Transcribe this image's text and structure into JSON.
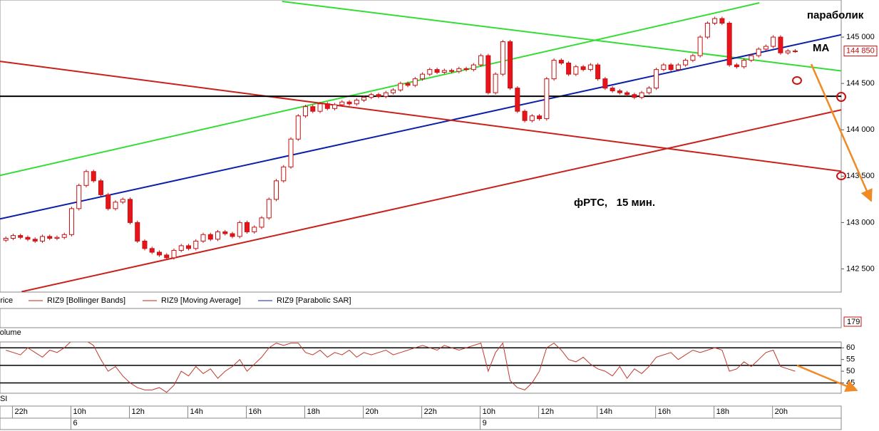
{
  "chart_data": {
    "type": "candlestick",
    "annotations": [
      "параболик",
      "MA",
      "фРТС,   15 мин."
    ],
    "legend": [
      "Price",
      "RIZ9 [Bollinger Bands]",
      "RIZ9 [Moving Average]",
      "RIZ9 [Parabolic SAR]"
    ],
    "xlim": [
      -0.8,
      114.3
    ],
    "xticks": [
      {
        "value": 1,
        "label": "22h"
      },
      {
        "value": 9,
        "label": "10h"
      },
      {
        "value": 17,
        "label": "12h"
      },
      {
        "value": 25,
        "label": "14h"
      },
      {
        "value": 33,
        "label": "16h"
      },
      {
        "value": 41,
        "label": "18h"
      },
      {
        "value": 49,
        "label": "20h"
      },
      {
        "value": 57,
        "label": "22h"
      },
      {
        "value": 65,
        "label": "10h"
      },
      {
        "value": 73,
        "label": "12h"
      },
      {
        "value": 81,
        "label": "14h"
      },
      {
        "value": 89,
        "label": "16h"
      },
      {
        "value": 97,
        "label": "18h"
      },
      {
        "value": 105,
        "label": "20h"
      }
    ],
    "dates": [
      {
        "value": 9,
        "label": "6"
      },
      {
        "value": 65,
        "label": "9"
      }
    ],
    "ylim": [
      142250,
      145400
    ],
    "yticks": [
      {
        "value": 142500,
        "label": "142 500"
      },
      {
        "value": 143000,
        "label": "143 000"
      },
      {
        "value": 143500,
        "label": "143 500"
      },
      {
        "value": 144000,
        "label": "144 000"
      },
      {
        "value": 144500,
        "label": "144 500"
      },
      {
        "value": 145000,
        "label": "145 000"
      }
    ],
    "last_price": {
      "value": 144850,
      "label": "144 850"
    },
    "up_color": "#ffffff",
    "down_color": "#e8141b",
    "outline_color": "#c81010",
    "open": [
      142810,
      142830,
      142860,
      142840,
      142820,
      142800,
      142850,
      142830,
      142840,
      142870,
      143150,
      143400,
      143550,
      143450,
      143300,
      143150,
      143220,
      143250,
      143000,
      142800,
      142720,
      142680,
      142650,
      142620,
      142700,
      142750,
      142720,
      142800,
      142870,
      142820,
      142900,
      142880,
      142850,
      143000,
      142900,
      142950,
      143050,
      143250,
      143450,
      143600,
      143900,
      144150,
      144250,
      144200,
      144280,
      144230,
      144270,
      144300,
      144280,
      144320,
      144350,
      144380,
      144360,
      144400,
      144430,
      144500,
      144480,
      144550,
      144600,
      144650,
      144620,
      144640,
      144630,
      144660,
      144650,
      144700,
      144800,
      144400,
      144600,
      144950,
      144450,
      144200,
      144100,
      144150,
      144120,
      144550,
      144750,
      144720,
      144600,
      144680,
      144650,
      144700,
      144550,
      144450,
      144420,
      144400,
      144380,
      144350,
      144400,
      144450,
      144650,
      144700,
      144650,
      144700,
      144750,
      144800,
      145000,
      145150,
      145200,
      145150,
      144700,
      144680,
      144750,
      144800,
      144870,
      144900,
      145000,
      144830,
      144850
    ],
    "high": [
      142850,
      142880,
      142880,
      142860,
      142840,
      142870,
      142870,
      142860,
      142890,
      143170,
      143420,
      143570,
      143570,
      143470,
      143320,
      143240,
      143270,
      143270,
      143020,
      142820,
      142740,
      142700,
      142670,
      142720,
      142770,
      142770,
      142820,
      142890,
      142890,
      142920,
      142920,
      142900,
      143020,
      143020,
      142970,
      143070,
      143270,
      143470,
      143620,
      143920,
      144170,
      144270,
      144270,
      144300,
      144300,
      144290,
      144320,
      144320,
      144340,
      144370,
      144400,
      144400,
      144420,
      144450,
      144520,
      144520,
      144570,
      144620,
      144670,
      144670,
      144660,
      144660,
      144680,
      144680,
      144720,
      144820,
      144820,
      144620,
      144970,
      144970,
      144470,
      144220,
      144170,
      144170,
      144570,
      144770,
      144770,
      144740,
      144700,
      144700,
      144720,
      144720,
      144570,
      144470,
      144440,
      144420,
      144400,
      144420,
      144470,
      144670,
      144720,
      144720,
      144720,
      144770,
      144820,
      145020,
      145170,
      145220,
      145220,
      145170,
      144720,
      144770,
      144820,
      144890,
      144920,
      145020,
      145020,
      144870,
      144870
    ],
    "low": [
      142790,
      142810,
      142820,
      142800,
      142780,
      142780,
      142810,
      142810,
      142820,
      142850,
      143130,
      143380,
      143430,
      143280,
      143130,
      143130,
      143200,
      142980,
      142780,
      142700,
      142660,
      142630,
      142600,
      142600,
      142680,
      142700,
      142700,
      142780,
      142800,
      142800,
      142860,
      142830,
      142830,
      142880,
      142880,
      142930,
      143030,
      143230,
      143430,
      143580,
      143880,
      144130,
      144180,
      144180,
      144210,
      144210,
      144250,
      144260,
      144260,
      144300,
      144330,
      144340,
      144340,
      144380,
      144410,
      144460,
      144460,
      144530,
      144580,
      144600,
      144600,
      144610,
      144610,
      144630,
      144630,
      144680,
      144380,
      144380,
      144580,
      144430,
      144180,
      144080,
      144080,
      144100,
      144100,
      144530,
      144700,
      144580,
      144580,
      144630,
      144630,
      144530,
      144430,
      144400,
      144380,
      144360,
      144330,
      144330,
      144380,
      144430,
      144630,
      144630,
      144630,
      144680,
      144730,
      144780,
      144980,
      145130,
      145130,
      144680,
      144660,
      144660,
      144730,
      144780,
      144850,
      144880,
      144810,
      144810,
      144830
    ],
    "close": [
      142830,
      142860,
      142840,
      142820,
      142800,
      142850,
      142830,
      142840,
      142870,
      143150,
      143400,
      143550,
      143450,
      143300,
      143150,
      143220,
      143250,
      143000,
      142800,
      142720,
      142680,
      142650,
      142620,
      142700,
      142750,
      142720,
      142800,
      142870,
      142820,
      142900,
      142880,
      142850,
      143000,
      142900,
      142950,
      143050,
      143250,
      143450,
      143600,
      143900,
      144150,
      144250,
      144200,
      144280,
      144230,
      144270,
      144300,
      144280,
      144320,
      144350,
      144380,
      144360,
      144400,
      144430,
      144500,
      144480,
      144550,
      144600,
      144650,
      144620,
      144640,
      144630,
      144660,
      144650,
      144700,
      144800,
      144400,
      144600,
      144950,
      144450,
      144200,
      144100,
      144150,
      144120,
      144550,
      144750,
      144720,
      144600,
      144680,
      144650,
      144700,
      144550,
      144450,
      144420,
      144400,
      144380,
      144350,
      144400,
      144450,
      144650,
      144700,
      144650,
      144700,
      144750,
      144800,
      145000,
      145150,
      145200,
      145150,
      144700,
      144680,
      144750,
      144800,
      144870,
      144900,
      145000,
      144830,
      144850,
      144850
    ],
    "trendlines": [
      {
        "color": "#33dd33",
        "points": [
          [
            -0.8,
            143508
          ],
          [
            103.1,
            145369
          ]
        ]
      },
      {
        "color": "#33dd33",
        "points": [
          [
            37.8,
            145385
          ],
          [
            119.5,
            144585
          ]
        ]
      },
      {
        "color": "#0a1fa8",
        "points": [
          [
            -0.8,
            143039
          ],
          [
            119.5,
            145115
          ]
        ]
      },
      {
        "color": "#c8201a",
        "points": [
          [
            -0.8,
            144738
          ],
          [
            119.5,
            143500
          ]
        ]
      },
      {
        "color": "#c8201a",
        "points": [
          [
            2.15,
            142254
          ],
          [
            114.3,
            144215
          ]
        ]
      },
      {
        "color": "#000000",
        "points": [
          [
            -0.8,
            144362
          ],
          [
            114.3,
            144362
          ]
        ]
      }
    ],
    "volume": {
      "title": "Volume",
      "last": 179
    },
    "rsi": {
      "title": "RSI",
      "color": "#c0392b",
      "values": [
        59,
        58,
        57,
        60,
        58,
        56,
        59,
        58,
        60,
        63,
        64,
        63,
        61,
        55,
        50,
        52,
        48,
        45,
        43,
        42,
        42,
        43,
        41,
        44,
        50,
        48,
        52,
        49,
        51,
        47,
        50,
        52,
        55,
        50,
        53,
        56,
        60,
        62,
        61,
        62,
        62,
        58,
        57,
        59,
        56,
        58,
        57,
        59,
        56,
        58,
        57,
        58,
        59,
        57,
        58,
        59,
        60,
        61,
        60,
        59,
        61,
        60,
        59,
        60,
        61,
        62,
        50,
        58,
        62,
        46,
        43,
        42,
        45,
        50,
        60,
        62,
        59,
        55,
        54,
        56,
        53,
        51,
        50,
        48,
        52,
        47,
        51,
        49,
        52,
        56,
        57,
        58,
        55,
        57,
        59,
        58,
        59,
        60,
        59,
        50,
        51,
        54,
        52,
        55,
        58,
        59,
        52,
        51,
        50
      ],
      "ylim": [
        40.6,
        62.5
      ],
      "yticks": [
        60,
        55,
        50,
        45
      ],
      "levels": [
        60,
        52.5,
        45
      ]
    }
  }
}
